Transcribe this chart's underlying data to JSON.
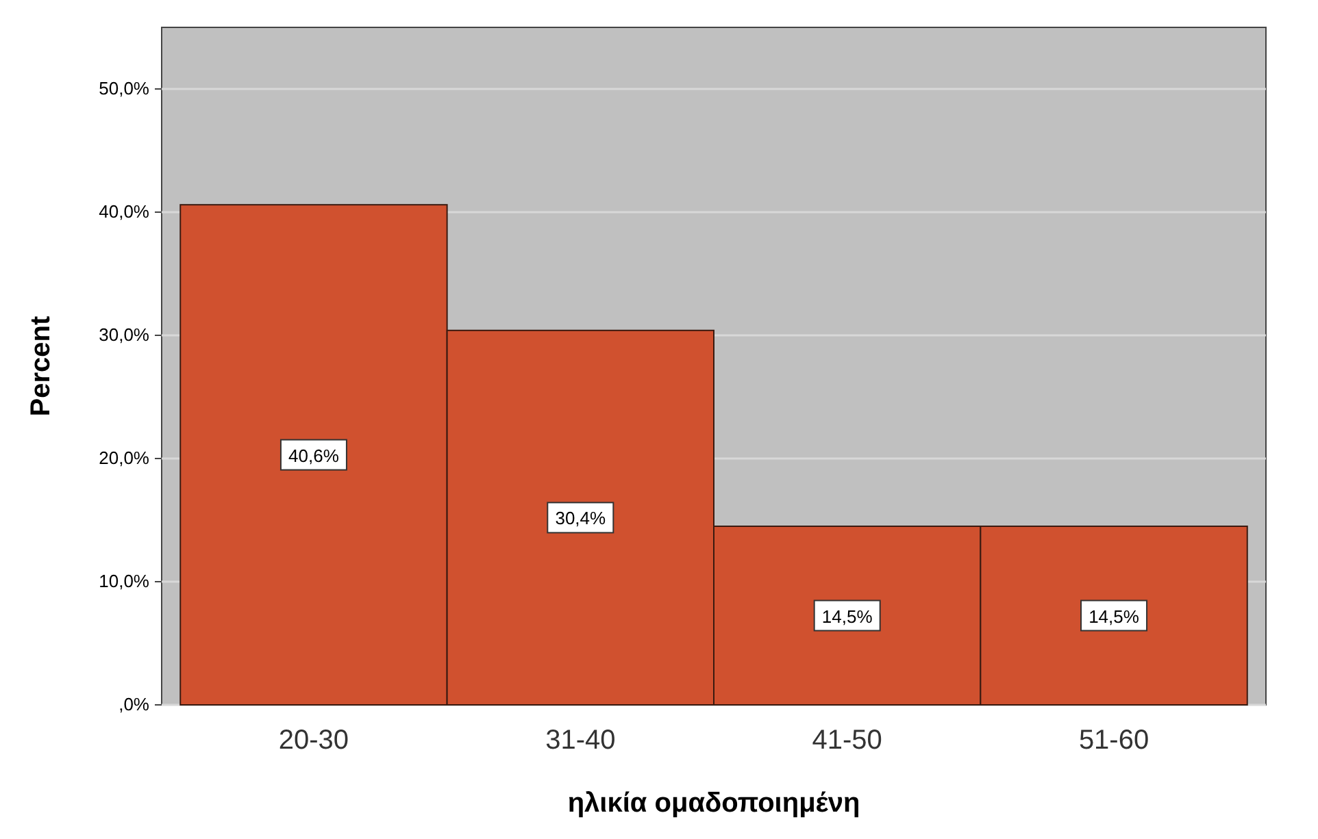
{
  "chart_data": {
    "type": "bar",
    "xlabel": "ηλικία ομαδοποιημένη",
    "ylabel": "Percent",
    "categories": [
      "20-30",
      "31-40",
      "41-50",
      "51-60"
    ],
    "values": [
      40.6,
      30.4,
      14.5,
      14.5
    ],
    "value_labels": [
      "40,6%",
      "30,4%",
      "14,5%",
      "14,5%"
    ],
    "color": "#d0512f",
    "ylim": [
      0,
      55
    ],
    "yticks": [
      {
        "value": 0,
        "label": ",0%"
      },
      {
        "value": 10,
        "label": "10,0%"
      },
      {
        "value": 20,
        "label": "20,0%"
      },
      {
        "value": 30,
        "label": "30,0%"
      },
      {
        "value": 40,
        "label": "40,0%"
      },
      {
        "value": 50,
        "label": "50,0%"
      }
    ],
    "grid": "y"
  }
}
